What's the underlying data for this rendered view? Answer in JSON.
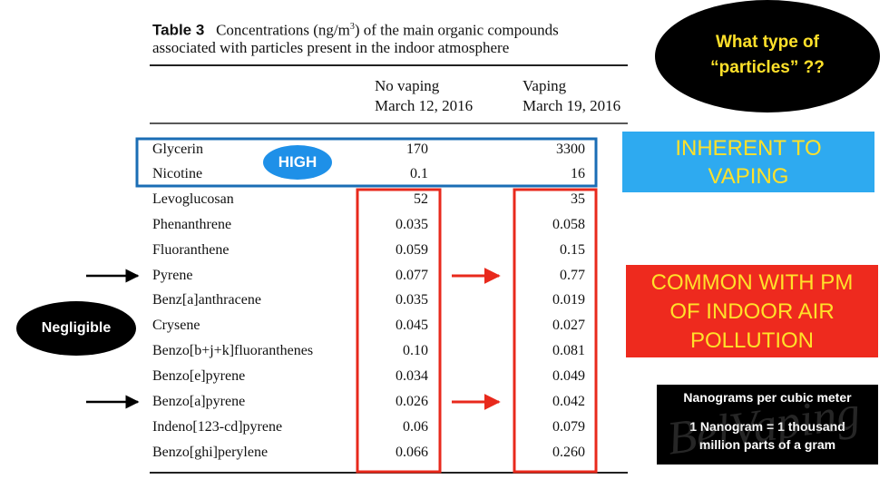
{
  "table": {
    "label": "Table 3",
    "title_before": "Concentrations (ng/m",
    "title_sup": "3",
    "title_after": ") of the main organic compounds",
    "title_line2": "associated with particles present in the indoor atmosphere",
    "columns": [
      [
        "No vaping",
        "March 12, 2016"
      ],
      [
        "Vaping",
        "March 19, 2016"
      ]
    ],
    "rows": [
      [
        "Glycerin",
        "170",
        "3300"
      ],
      [
        "Nicotine",
        "0.1",
        "16"
      ],
      [
        "Levoglucosan",
        "52",
        "35"
      ],
      [
        "Phenanthrene",
        "0.035",
        "0.058"
      ],
      [
        "Fluoranthene",
        "0.059",
        "0.15"
      ],
      [
        "Pyrene",
        "0.077",
        "0.77"
      ],
      [
        "Benz[a]anthracene",
        "0.035",
        "0.019"
      ],
      [
        "Crysene",
        "0.045",
        "0.027"
      ],
      [
        "Benzo[b+j+k]fluoranthenes",
        "0.10",
        "0.081"
      ],
      [
        "Benzo[e]pyrene",
        "0.034",
        "0.049"
      ],
      [
        "Benzo[a]pyrene",
        "0.026",
        "0.042"
      ],
      [
        "Indeno[123-cd]pyrene",
        "0.06",
        "0.079"
      ],
      [
        "Benzo[ghi]perylene",
        "0.066",
        "0.260"
      ]
    ]
  },
  "annotations": {
    "question": [
      "What type of",
      "“particles” ??"
    ],
    "high": "HIGH",
    "inherent": [
      "INHERENT TO",
      "VAPING"
    ],
    "common": [
      "COMMON WITH PM",
      "OF INDOOR AIR",
      "POLLUTION"
    ],
    "negligible": "Negligible",
    "units": [
      "Nanograms per cubic meter",
      "1 Nanogram = 1 thousand",
      "million parts of a gram"
    ],
    "watermark": "BelVaping"
  }
}
